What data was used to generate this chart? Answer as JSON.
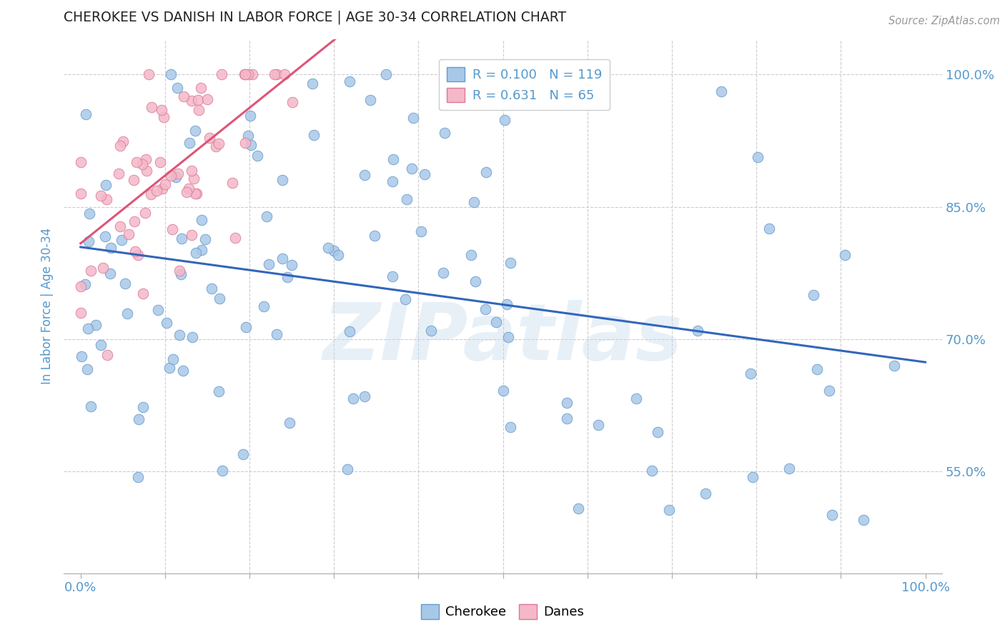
{
  "title": "CHEROKEE VS DANISH IN LABOR FORCE | AGE 30-34 CORRELATION CHART",
  "source": "Source: ZipAtlas.com",
  "ylabel": "In Labor Force | Age 30-34",
  "watermark": "ZIPatlas",
  "cherokee_color": "#a8c8e8",
  "cherokee_edge": "#6699cc",
  "danes_color": "#f4b8c8",
  "danes_edge": "#dd7799",
  "trend_cherokee_color": "#3366bb",
  "trend_danes_color": "#dd5577",
  "background_color": "#ffffff",
  "grid_color": "#cccccc",
  "title_color": "#222222",
  "axis_label_color": "#5599cc",
  "cherokee_R": 0.1,
  "cherokee_N": 119,
  "danes_R": 0.631,
  "danes_N": 65,
  "xlim": [
    -0.02,
    1.02
  ],
  "ylim": [
    0.435,
    1.04
  ],
  "ytick_positions": [
    0.55,
    0.7,
    0.85,
    1.0
  ],
  "ytick_labels": [
    "55.0%",
    "70.0%",
    "85.0%",
    "100.0%"
  ],
  "xtick_positions": [
    0.0,
    0.1,
    0.2,
    0.3,
    0.4,
    0.5,
    0.6,
    0.7,
    0.8,
    0.9,
    1.0
  ],
  "grid_yticks": [
    0.55,
    0.7,
    0.85,
    1.0
  ],
  "grid_xticks": [
    0.1,
    0.2,
    0.3,
    0.4,
    0.5,
    0.6,
    0.7,
    0.8,
    0.9
  ]
}
